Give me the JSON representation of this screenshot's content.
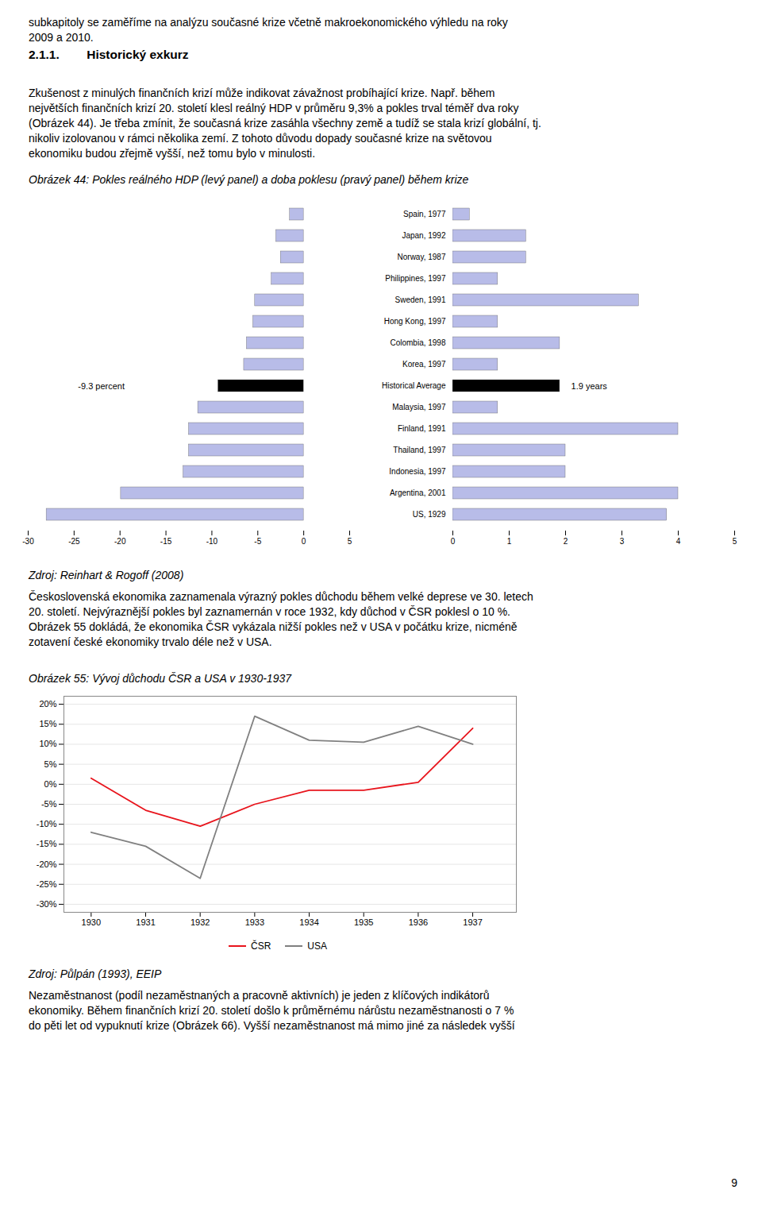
{
  "text_blocks": [
    {
      "text": "subkapitoly se zaměříme na analýzu současné krize včetně makroekonomického výhledu na roky\n2009 a 2010.",
      "style": "normal"
    },
    {
      "text": "2.1.1.        Historický exkurz",
      "style": "bold"
    },
    {
      "text": "Zkušenost z minulých finančních krizí může indikovat závažnost probíhající krize. Např. během\nnejvětších finančních krizí 20. století klesl reálný HDP v průměru 9,3% a pokles trval téměř dva roky\n(Obrázek 44). Je třeba zmínit, že současná krize zasáhla všechny země a tudíž se stala krizí globální, tj.\nnikoliv izolovanou v rámci několika zemí. Z tohoto důvodu dopady současné krize na světovou\nekonomiku budou zřejmě vyšší, než tomu bylo v minulosti.",
      "style": "normal"
    },
    {
      "text": "Zdroj: Reinhart & Rogoff (2008)",
      "style": "italic"
    },
    {
      "text": "Československá ekonomika zaznamenala výrazný pokles důchodu během velké deprese ve 30. letech\n20. století. Nejvýraznější pokles byl zaznamernán v roce 1932, kdy důchod v ČSR poklesl o 10 %.\nObrázek 55 dokládá, že ekonomika ČSR vykázala nižší pokles než v USA v počátku krize, nicméně\nzotavení české ekonomiky trvalo déle než v USA.",
      "style": "normal"
    },
    {
      "text": "Zdroj: Půlpán (1993), EEIP",
      "style": "italic"
    },
    {
      "text": "Nezaměstnanost (podíl nezaměstnaných a pracovně aktivních) je jeden z klíčových indikátorů\nekonomiky. Během finančních krizí 20. století došlo k průměrnému nárůstu nezaměstnanosti o 7 %\ndo pěti let od vypuknutí krize (Obrázek 66). Vyšší nezaměstnanost má mimo jiné za následek vyšší",
      "style": "normal"
    },
    {
      "text": "9",
      "style": "normal"
    }
  ],
  "chart_data": [
    {
      "type": "bar",
      "orientation": "horizontal",
      "title": "Obrázek 44: Pokles reálného HDP (levý panel) a doba poklesu (pravý panel) během krize",
      "categories": [
        "Spain, 1977",
        "Japan, 1992",
        "Norway, 1987",
        "Philippines, 1997",
        "Sweden, 1991",
        "Hong Kong, 1997",
        "Colombia, 1998",
        "Korea, 1997",
        "Historical Average",
        "Malaysia, 1997",
        "Finland, 1991",
        "Thailand, 1997",
        "Indonesia, 1997",
        "Argentina, 2001",
        "US, 1929"
      ],
      "values": [
        -1.5,
        -3.0,
        -2.5,
        -3.5,
        -5.3,
        -5.5,
        -6.2,
        -6.5,
        -9.3,
        -11.5,
        -12.5,
        -12.5,
        -13.1,
        -19.9,
        -28.0
      ],
      "colors": [
        "#b8bce8",
        "#b8bce8",
        "#b8bce8",
        "#b8bce8",
        "#b8bce8",
        "#b8bce8",
        "#b8bce8",
        "#b8bce8",
        "#000000",
        "#b8bce8",
        "#b8bce8",
        "#b8bce8",
        "#b8bce8",
        "#b8bce8",
        "#b8bce8"
      ],
      "xlim": [
        -30,
        5
      ],
      "xticks": [
        -30,
        -25,
        -20,
        -15,
        -10,
        -5,
        0,
        5
      ],
      "tick_labels": "x",
      "annotations": [
        {
          "text": "-9.3 percent",
          "x": -19.5,
          "y": "Historical Average"
        }
      ]
    },
    {
      "type": "bar",
      "orientation": "horizontal",
      "categories": [
        "Spain, 1977",
        "Japan, 1992",
        "Norway, 1987",
        "Philippines, 1997",
        "Sweden, 1991",
        "Hong Kong, 1997",
        "Colombia, 1998",
        "Korea, 1997",
        "Historical Average",
        "Malaysia, 1997",
        "Finland, 1991",
        "Thailand, 1997",
        "Indonesia, 1997",
        "Argentina, 2001",
        "US, 1929"
      ],
      "values": [
        0.3,
        1.3,
        1.3,
        0.8,
        3.3,
        0.8,
        1.9,
        0.8,
        1.9,
        0.8,
        4.0,
        2.0,
        2.0,
        4.0,
        3.8
      ],
      "colors": [
        "#b8bce8",
        "#b8bce8",
        "#b8bce8",
        "#b8bce8",
        "#b8bce8",
        "#b8bce8",
        "#b8bce8",
        "#b8bce8",
        "#000000",
        "#b8bce8",
        "#b8bce8",
        "#b8bce8",
        "#b8bce8",
        "#b8bce8",
        "#b8bce8"
      ],
      "xlim": [
        0,
        5
      ],
      "xticks": [
        0,
        1,
        2,
        3,
        4,
        5
      ],
      "annotations": [
        {
          "text": "1.9 years",
          "x": 2.1,
          "y": "Historical Average"
        }
      ]
    },
    {
      "type": "line",
      "title": "Obrázek 55: Vývoj důchodu ČSR a USA v 1930-1937",
      "x": [
        1930,
        1931,
        1932,
        1933,
        1934,
        1935,
        1936,
        1937
      ],
      "series": [
        {
          "name": "ČSR",
          "color": "#e8141c",
          "values": [
            1.5,
            -6.5,
            -10.5,
            -5.0,
            -1.5,
            -1.5,
            0.5,
            14.0
          ]
        },
        {
          "name": "USA",
          "color": "#808080",
          "values": [
            -12.0,
            -15.5,
            -23.5,
            17.0,
            11.0,
            10.5,
            14.5,
            10.0
          ]
        }
      ],
      "xlim": [
        1929.5,
        1937.8
      ],
      "xticks": [
        1930,
        1931,
        1932,
        1933,
        1934,
        1935,
        1936,
        1937
      ],
      "ylim": [
        -32,
        22
      ],
      "yticks": [
        {
          "value": -30,
          "label": "-30%"
        },
        {
          "value": -25,
          "label": "-25%"
        },
        {
          "value": -20,
          "label": "-20%"
        },
        {
          "value": -15,
          "label": "-15%"
        },
        {
          "value": -10,
          "label": "-10%"
        },
        {
          "value": -5,
          "label": "-5%"
        },
        {
          "value": 0,
          "label": "0%"
        },
        {
          "value": 5,
          "label": "5%"
        },
        {
          "value": 10,
          "label": "10%"
        },
        {
          "value": 15,
          "label": "15%"
        },
        {
          "value": 20,
          "label": "20%"
        }
      ],
      "grid": true,
      "legend": "lower center"
    }
  ]
}
